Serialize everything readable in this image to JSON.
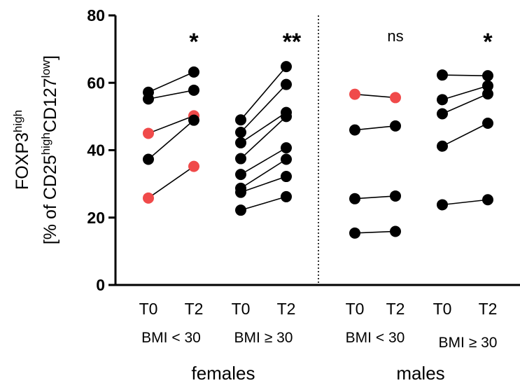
{
  "chart_data": {
    "type": "scatter",
    "subtype": "paired-before-after",
    "ylabel": {
      "line1": {
        "base": "FOXP3",
        "sup": "high"
      },
      "line2": [
        {
          "t": "[% of CD25",
          "sup": false
        },
        {
          "t": "high",
          "sup": true
        },
        {
          "t": "CD127",
          "sup": false
        },
        {
          "t": "low",
          "sup": true
        },
        {
          "t": "]",
          "sup": false
        }
      ]
    },
    "ylim": [
      0,
      80
    ],
    "yticks": [
      "0",
      "20",
      "40",
      "60",
      "80"
    ],
    "point_color_default": "#000000",
    "point_color_highlight": "#F04A4A",
    "divider_style": "dotted",
    "sexes": [
      {
        "label": "females"
      },
      {
        "label": "males"
      }
    ],
    "groups": [
      {
        "sex": "females",
        "label": "BMI < 30",
        "timepoints": [
          "T0",
          "T2"
        ],
        "significance": "*",
        "pairs": [
          {
            "t0": 57.2,
            "t2": 63.2,
            "highlight": false
          },
          {
            "t0": 55.2,
            "t2": 57.8,
            "highlight": false
          },
          {
            "t0": 45.0,
            "t2": 50.2,
            "highlight": true
          },
          {
            "t0": 37.3,
            "t2": 48.9,
            "highlight": false
          },
          {
            "t0": 25.8,
            "t2": 35.2,
            "highlight": true
          }
        ]
      },
      {
        "sex": "females",
        "label": "BMI ≥ 30",
        "timepoints": [
          "T0",
          "T2"
        ],
        "significance": "**",
        "pairs": [
          {
            "t0": 49.0,
            "t2": 64.8,
            "highlight": false
          },
          {
            "t0": 45.3,
            "t2": 59.5,
            "highlight": false
          },
          {
            "t0": 42.2,
            "t2": 51.2,
            "highlight": false
          },
          {
            "t0": 37.5,
            "t2": 50.0,
            "highlight": false
          },
          {
            "t0": 32.8,
            "t2": 40.7,
            "highlight": false
          },
          {
            "t0": 28.7,
            "t2": 37.3,
            "highlight": false
          },
          {
            "t0": 27.5,
            "t2": 32.2,
            "highlight": false
          },
          {
            "t0": 22.2,
            "t2": 26.2,
            "highlight": false
          }
        ]
      },
      {
        "sex": "males",
        "label": "BMI < 30",
        "timepoints": [
          "T0",
          "T2"
        ],
        "significance": "ns",
        "pairs": [
          {
            "t0": 56.6,
            "t2": 55.6,
            "highlight": true
          },
          {
            "t0": 46.0,
            "t2": 47.2,
            "highlight": false
          },
          {
            "t0": 25.6,
            "t2": 26.4,
            "highlight": false
          },
          {
            "t0": 15.4,
            "t2": 15.9,
            "highlight": false
          }
        ]
      },
      {
        "sex": "males",
        "label": "BMI ≥ 30",
        "timepoints": [
          "T0",
          "T2"
        ],
        "significance": "*",
        "pairs": [
          {
            "t0": 62.3,
            "t2": 62.1,
            "highlight": false
          },
          {
            "t0": 55.0,
            "t2": 59.1,
            "highlight": false
          },
          {
            "t0": 50.8,
            "t2": 56.7,
            "highlight": false
          },
          {
            "t0": 41.2,
            "t2": 48.0,
            "highlight": false
          },
          {
            "t0": 23.8,
            "t2": 25.3,
            "highlight": false
          }
        ]
      }
    ]
  }
}
